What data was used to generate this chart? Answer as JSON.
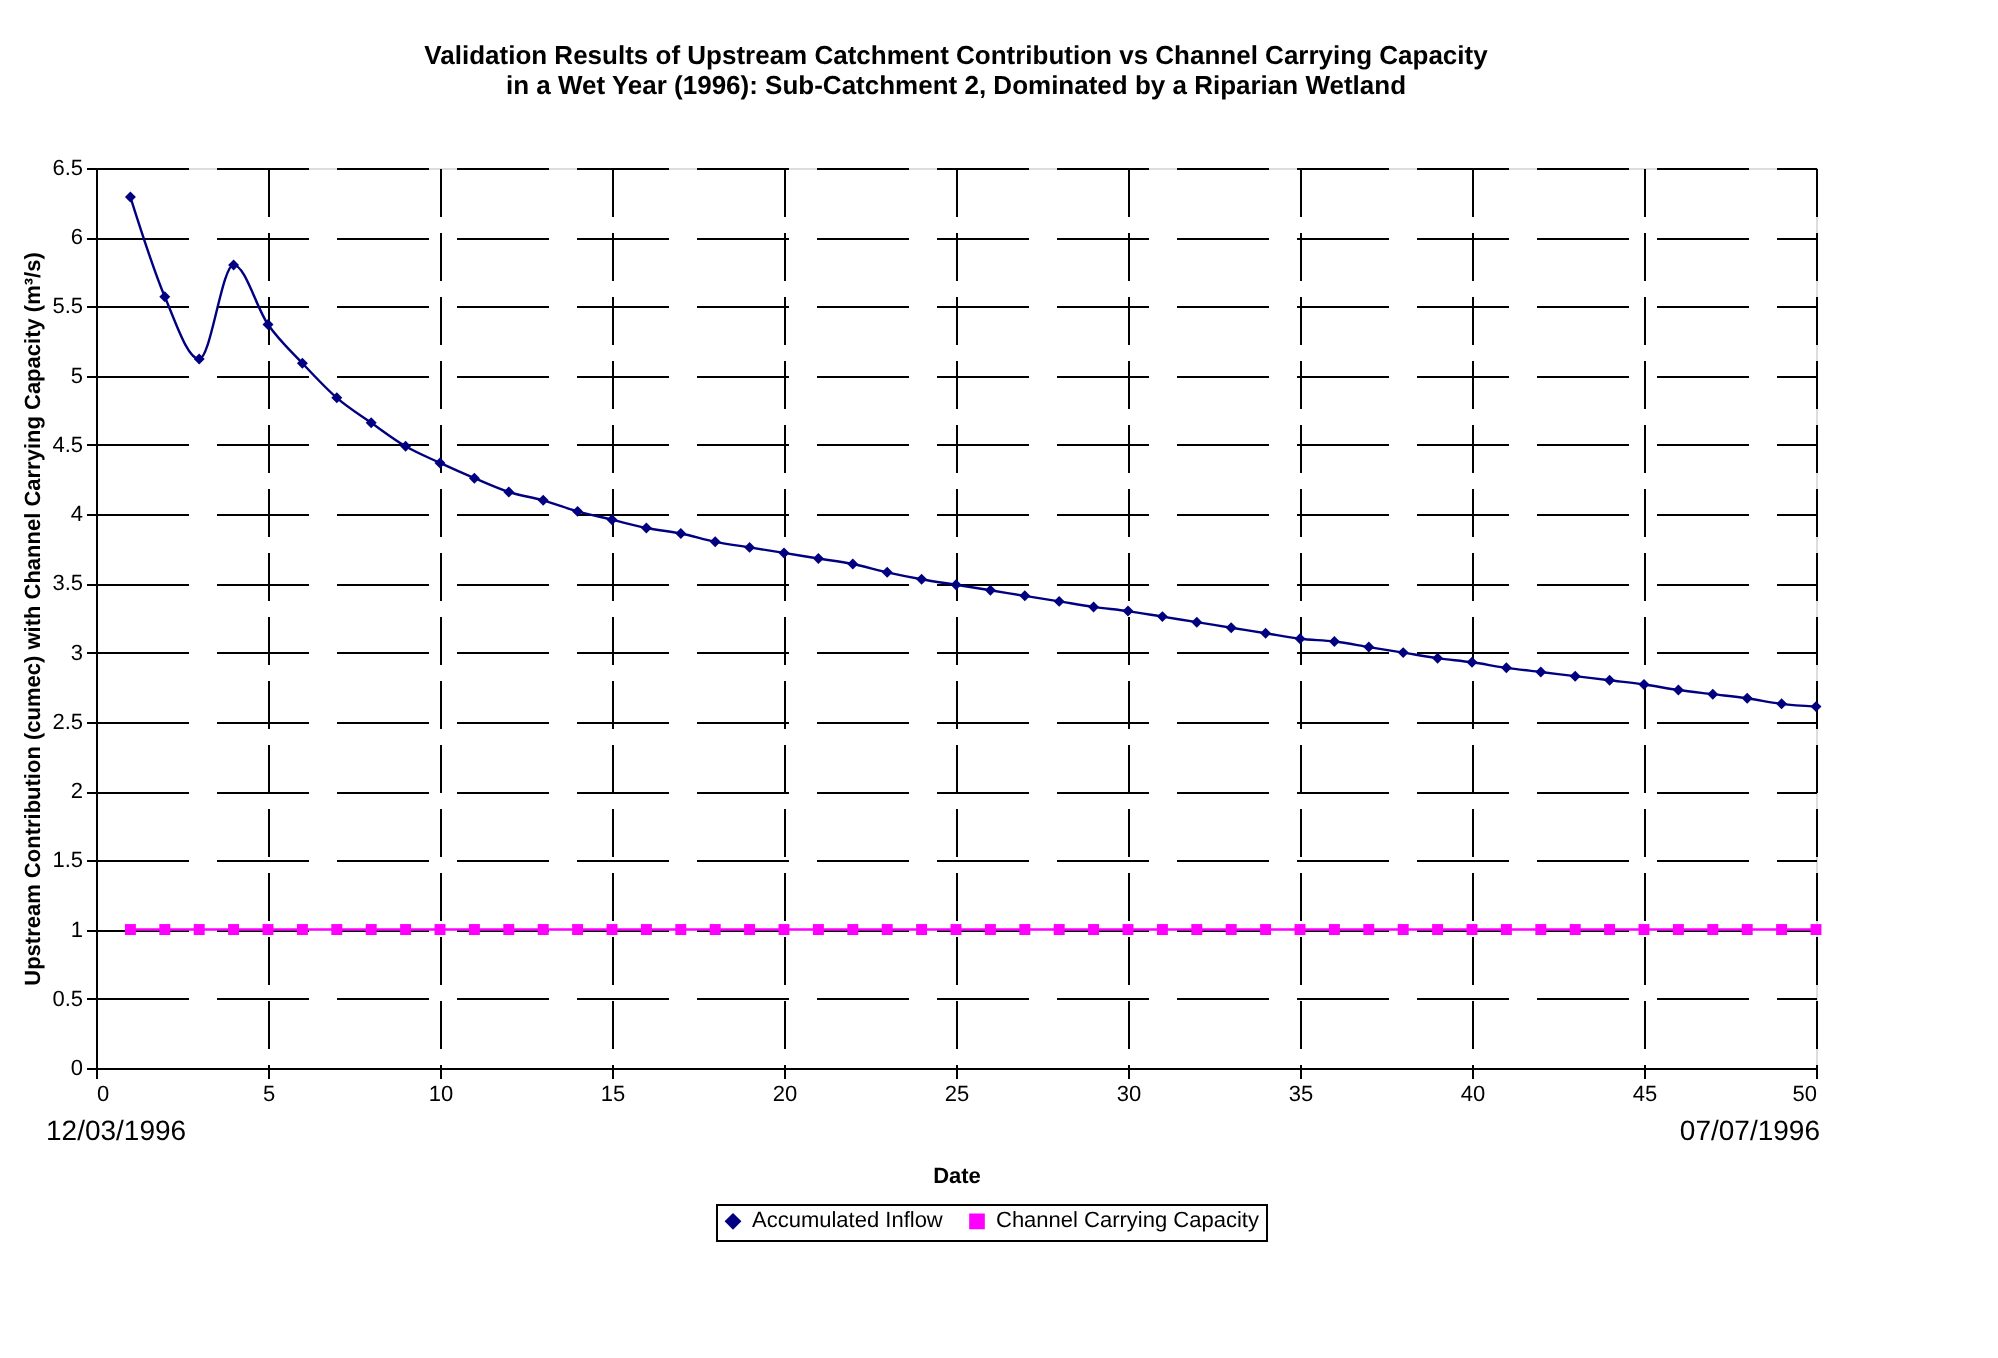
{
  "chart_data": {
    "type": "line",
    "title": "Validation Results of Upstream Catchment Contribution vs Channel Carrying Capacity\nin a Wet Year (1996):  Sub-Catchment 2, Dominated by a Riparian Wetland",
    "xlabel": "Date",
    "ylabel": "Upstream Contribution (cumec) with Channel Carrying Capacity (m³/s)",
    "x": [
      1,
      2,
      3,
      4,
      5,
      6,
      7,
      8,
      9,
      10,
      11,
      12,
      13,
      14,
      15,
      16,
      17,
      18,
      19,
      20,
      21,
      22,
      23,
      24,
      25,
      26,
      27,
      28,
      29,
      30,
      31,
      32,
      33,
      34,
      35,
      36,
      37,
      38,
      39,
      40,
      41,
      42,
      43,
      44,
      45,
      46,
      47,
      48,
      49,
      50
    ],
    "series": [
      {
        "name": "Accumulated Inflow",
        "color": "#000080",
        "marker": "diamond",
        "values": [
          6.29,
          5.57,
          5.12,
          5.8,
          5.37,
          5.09,
          4.84,
          4.66,
          4.49,
          4.37,
          4.26,
          4.16,
          4.1,
          4.02,
          3.96,
          3.9,
          3.86,
          3.8,
          3.76,
          3.72,
          3.68,
          3.64,
          3.58,
          3.53,
          3.49,
          3.45,
          3.41,
          3.37,
          3.33,
          3.3,
          3.26,
          3.22,
          3.18,
          3.14,
          3.1,
          3.08,
          3.04,
          3.0,
          2.96,
          2.93,
          2.89,
          2.86,
          2.83,
          2.8,
          2.77,
          2.73,
          2.7,
          2.67,
          2.63,
          2.61
        ]
      },
      {
        "name": "Channel Carrying Capacity",
        "color": "#ff00ff",
        "marker": "square",
        "values": [
          1,
          1,
          1,
          1,
          1,
          1,
          1,
          1,
          1,
          1,
          1,
          1,
          1,
          1,
          1,
          1,
          1,
          1,
          1,
          1,
          1,
          1,
          1,
          1,
          1,
          1,
          1,
          1,
          1,
          1,
          1,
          1,
          1,
          1,
          1,
          1,
          1,
          1,
          1,
          1,
          1,
          1,
          1,
          1,
          1,
          1,
          1,
          1,
          1,
          1
        ]
      }
    ],
    "xlim": [
      0,
      50
    ],
    "xticks": [
      0,
      5,
      10,
      15,
      20,
      25,
      30,
      35,
      40,
      45,
      50
    ],
    "ylim": [
      0,
      6.5
    ],
    "yticks": [
      0,
      0.5,
      1,
      1.5,
      2,
      2.5,
      3,
      3.5,
      4,
      4.5,
      5,
      5.5,
      6,
      6.5
    ],
    "grid": true,
    "legend": "bottom",
    "line_style": "solid",
    "annotations": [
      "12/03/1996",
      "07/07/1996"
    ]
  }
}
